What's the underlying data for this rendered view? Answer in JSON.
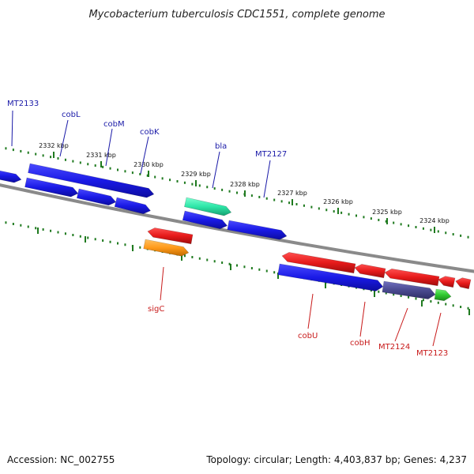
{
  "title": "Mycobacterium tuberculosis CDC1551, complete genome",
  "footer": {
    "accession": "Accession: NC_002755",
    "summary": "Topology: circular; Length: 4,403,837 bp; Genes: 4,237"
  },
  "scale_ticks": [
    {
      "label": "2332 kbp",
      "kbp": 2332
    },
    {
      "label": "2331 kbp",
      "kbp": 2331
    },
    {
      "label": "2330 kbp",
      "kbp": 2330
    },
    {
      "label": "2329 kbp",
      "kbp": 2329
    },
    {
      "label": "2328 kbp",
      "kbp": 2328
    },
    {
      "label": "2327 kbp",
      "kbp": 2327
    },
    {
      "label": "2326 kbp",
      "kbp": 2326
    },
    {
      "label": "2325 kbp",
      "kbp": 2325
    },
    {
      "label": "2324 kbp",
      "kbp": 2324
    }
  ],
  "forward_labels": [
    "MT2133",
    "cobL",
    "cobM",
    "cobK",
    "bla",
    "MT2127"
  ],
  "reverse_labels": [
    "sigC",
    "cobU",
    "cobH",
    "MT2124",
    "MT2123"
  ],
  "colors": {
    "backbone": "#888888",
    "tick_green": "#1f7a1f",
    "forward_gene": "#1a1ae6",
    "reverse_gene": "#e61a1a",
    "teal_gene": "#2ee6a8",
    "orange_gene": "#ff9a1a",
    "slate_gene": "#4a4a90",
    "green_gene": "#2ec82e",
    "forward_label": "#1a1aa8",
    "reverse_label": "#c81a1a"
  }
}
